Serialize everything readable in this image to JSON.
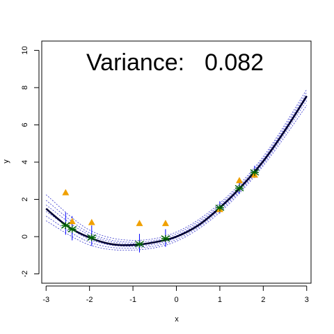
{
  "chart_data": {
    "type": "scatter",
    "title": "",
    "xlabel": "x",
    "ylabel": "y",
    "xlim": [
      -3.1,
      3.1
    ],
    "ylim": [
      -2.5,
      10.5
    ],
    "xticks": [
      -3,
      -2,
      -1,
      0,
      1,
      2,
      3
    ],
    "yticks": [
      -2,
      0,
      2,
      4,
      6,
      8,
      10
    ],
    "xtick_labels": [
      "-3",
      "-2",
      "-1",
      "0",
      "1",
      "2",
      "3"
    ],
    "ytick_labels": [
      "-2",
      "0",
      "2",
      "4",
      "6",
      "8",
      "10"
    ],
    "grid": false,
    "annotation": {
      "label": "Variance:",
      "value": "0.082"
    },
    "colors": {
      "mean_curve": "#000033",
      "sample_curves": "#3333cc",
      "error_bars": "#0000ff",
      "observations": "#f0a000",
      "fitted_points": "#006400"
    },
    "mean_curve": {
      "x": [
        -3.0,
        -2.5,
        -2.0,
        -1.5,
        -1.0,
        -0.5,
        0.0,
        0.5,
        1.0,
        1.5,
        2.0,
        2.5,
        3.0
      ],
      "y": [
        1.5,
        0.55,
        -0.05,
        -0.4,
        -0.45,
        -0.3,
        0.0,
        0.6,
        1.55,
        2.7,
        4.05,
        5.7,
        7.55
      ]
    },
    "sample_curves": [
      {
        "x": [
          -3.0,
          -2.0,
          -1.0,
          0.0,
          1.0,
          2.0,
          3.0
        ],
        "y": [
          2.25,
          0.35,
          -0.2,
          0.25,
          1.8,
          4.3,
          7.9
        ]
      },
      {
        "x": [
          -3.0,
          -2.0,
          -1.0,
          0.0,
          1.0,
          2.0,
          3.0
        ],
        "y": [
          1.95,
          0.2,
          -0.3,
          0.15,
          1.7,
          4.2,
          7.75
        ]
      },
      {
        "x": [
          -3.0,
          -2.0,
          -1.0,
          0.0,
          1.0,
          2.0,
          3.0
        ],
        "y": [
          1.7,
          0.08,
          -0.38,
          0.05,
          1.62,
          4.12,
          7.62
        ]
      },
      {
        "x": [
          -3.0,
          -2.0,
          -1.0,
          0.0,
          1.0,
          2.0,
          3.0
        ],
        "y": [
          1.35,
          -0.15,
          -0.52,
          -0.05,
          1.48,
          3.98,
          7.45
        ]
      },
      {
        "x": [
          -3.0,
          -2.0,
          -1.0,
          0.0,
          1.0,
          2.0,
          3.0
        ],
        "y": [
          1.1,
          -0.3,
          -0.62,
          -0.15,
          1.4,
          3.9,
          7.3
        ]
      },
      {
        "x": [
          -3.0,
          -2.0,
          -1.0,
          0.0,
          1.0,
          2.0,
          3.0
        ],
        "y": [
          0.85,
          -0.45,
          -0.72,
          -0.25,
          1.3,
          3.8,
          7.05
        ]
      }
    ],
    "observations": {
      "x": [
        -2.55,
        -2.4,
        -1.95,
        -0.85,
        -0.25,
        1.0,
        1.45,
        1.8
      ],
      "y": [
        2.35,
        0.8,
        0.75,
        0.7,
        0.7,
        1.45,
        3.0,
        3.3
      ]
    },
    "fitted_points": {
      "x": [
        -2.55,
        -2.4,
        -1.95,
        -0.85,
        -0.25,
        1.0,
        1.45,
        1.8
      ],
      "y": [
        0.6,
        0.4,
        -0.05,
        -0.4,
        -0.1,
        1.55,
        2.6,
        3.45
      ],
      "err_low": [
        0.1,
        -0.2,
        -0.5,
        -0.85,
        -0.55,
        1.25,
        2.3,
        3.15
      ],
      "err_high": [
        1.3,
        1.1,
        0.6,
        0.15,
        0.4,
        1.9,
        2.95,
        3.8
      ]
    }
  }
}
